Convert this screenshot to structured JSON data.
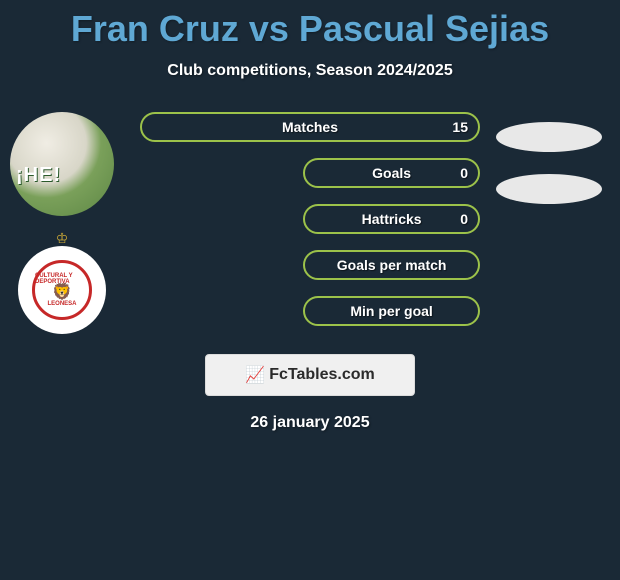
{
  "header": {
    "title": "Fran Cruz vs Pascual Sejias",
    "subtitle": "Club competitions, Season 2024/2025",
    "title_color": "#5fa8d4",
    "subtitle_color": "#ffffff"
  },
  "stats": {
    "rows": [
      {
        "label": "Matches",
        "value_right": "15",
        "fill": "full"
      },
      {
        "label": "Goals",
        "value_right": "0",
        "fill": "half"
      },
      {
        "label": "Hattricks",
        "value_right": "0",
        "fill": "half"
      },
      {
        "label": "Goals per match",
        "value_right": "",
        "fill": "half"
      },
      {
        "label": "Min per goal",
        "value_right": "",
        "fill": "half"
      }
    ],
    "bar_border_color": "#9cc24a",
    "bar_text_color": "#ffffff"
  },
  "left_side": {
    "avatar_overlay_text": "¡HE!",
    "crest_top_text": "CULTURAL Y DEPORTIVA",
    "crest_bottom_text": "LEONESA",
    "crest_ring_color": "#c62828",
    "crest_crown_color": "#d4af37"
  },
  "right_side": {
    "oval_color": "#e8e8e8",
    "oval_count": 2
  },
  "footer": {
    "logo_text": "FcTables.com",
    "date": "26 january 2025",
    "logo_bg": "#f0f0f0"
  },
  "colors": {
    "page_bg": "#1a2936"
  }
}
